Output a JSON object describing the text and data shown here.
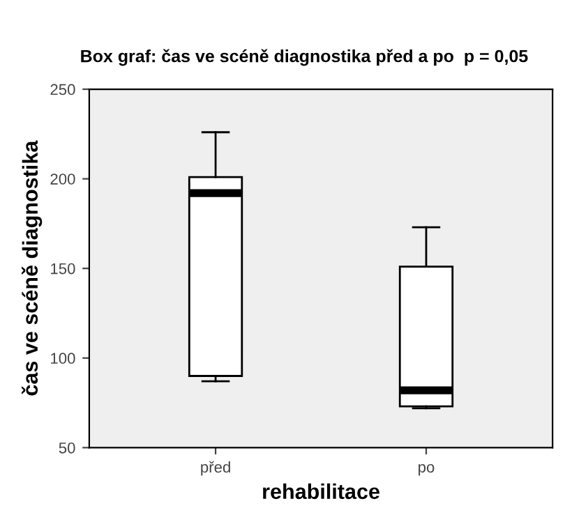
{
  "chart_data": {
    "type": "box",
    "title": "Box graf: čas ve scéně diagnostika před a po  p = 0,05",
    "xlabel": "rehabilitace",
    "ylabel": "čas ve scéně diagnostika",
    "categories": [
      "před",
      "po"
    ],
    "boxes": [
      {
        "low": 87,
        "q1": 90,
        "median": 192,
        "q3": 201,
        "high": 226
      },
      {
        "low": 72,
        "q1": 73,
        "median": 82,
        "q3": 151,
        "high": 173
      }
    ],
    "ylim": [
      50,
      250
    ],
    "yticks": [
      50,
      100,
      150,
      200,
      250
    ],
    "grid": false,
    "color": "#ffffff"
  }
}
